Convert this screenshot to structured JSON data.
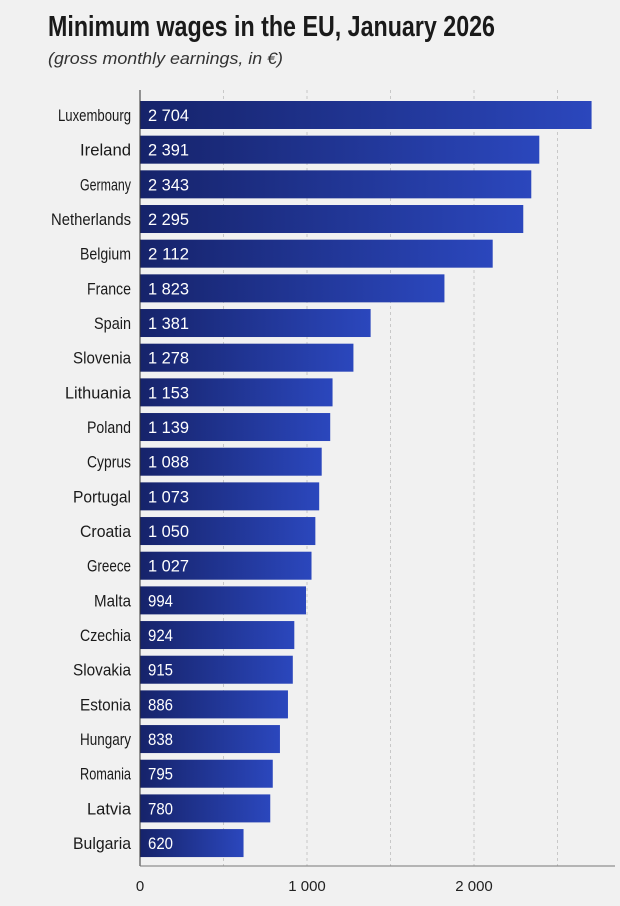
{
  "chart_data": {
    "type": "bar",
    "orientation": "horizontal",
    "title": "Minimum wages in the EU, January 2026",
    "subtitle": "(gross monthly earnings, in €)",
    "categories": [
      "Luxembourg",
      "Ireland",
      "Germany",
      "Netherlands",
      "Belgium",
      "France",
      "Spain",
      "Slovenia",
      "Lithuania",
      "Poland",
      "Cyprus",
      "Portugal",
      "Croatia",
      "Greece",
      "Malta",
      "Czechia",
      "Slovakia",
      "Estonia",
      "Hungary",
      "Romania",
      "Latvia",
      "Bulgaria"
    ],
    "values": [
      2704,
      2391,
      2343,
      2295,
      2112,
      1823,
      1381,
      1278,
      1153,
      1139,
      1088,
      1073,
      1050,
      1027,
      994,
      924,
      915,
      886,
      838,
      795,
      780,
      620
    ],
    "value_labels": [
      "2 704",
      "2 391",
      "2 343",
      "2 295",
      "2 112",
      "1 823",
      "1 381",
      "1 278",
      "1 153",
      "1 139",
      "1 088",
      "1 073",
      "1 050",
      "1 027",
      "994",
      "924",
      "915",
      "886",
      "838",
      "795",
      "780",
      "620"
    ],
    "xticks": [
      0,
      1000,
      2000
    ],
    "xtick_labels": [
      "0",
      "1 000",
      "2 000"
    ],
    "xlim": [
      0,
      2850
    ],
    "grid": "vertical dashed every 500",
    "legend": "none",
    "colors": {
      "bar_start": "#16236a",
      "bar_end": "#2b47bd",
      "background": "#f1f1f1",
      "text": "#1a1a1a",
      "value_text": "#ffffff"
    }
  }
}
